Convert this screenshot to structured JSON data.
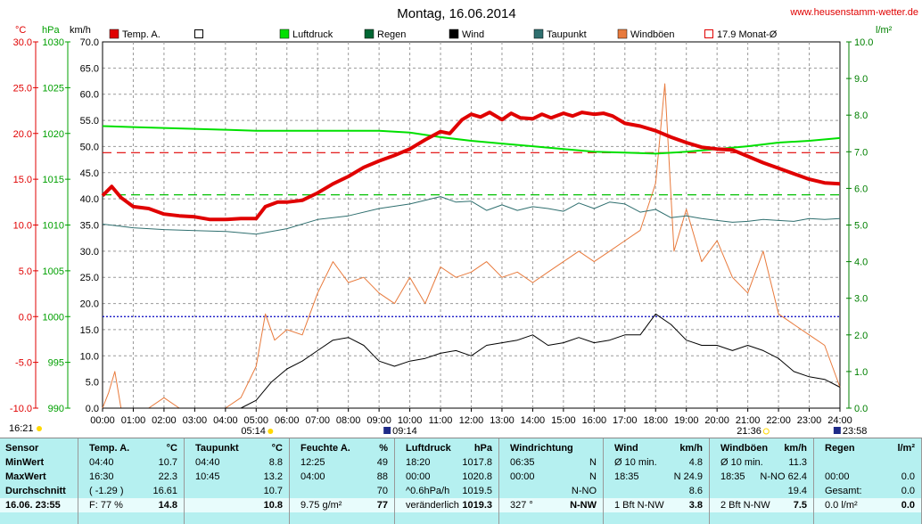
{
  "chart_data": {
    "type": "line",
    "title": "Montag, 16.06.2014",
    "website": "www.heusenstamm-wetter.de",
    "x_labels": [
      "00:00",
      "01:00",
      "02:00",
      "03:00",
      "04:00",
      "05:00",
      "06:00",
      "07:00",
      "08:00",
      "09:00",
      "10:00",
      "11:00",
      "12:00",
      "13:00",
      "14:00",
      "15:00",
      "16:00",
      "17:00",
      "18:00",
      "19:00",
      "20:00",
      "21:00",
      "22:00",
      "23:00",
      "24:00"
    ],
    "xlim": [
      0,
      24
    ],
    "axes": {
      "temp": {
        "unit": "°C",
        "min": -10,
        "max": 30,
        "ticks": [
          "30.0",
          "25.0",
          "20.0",
          "15.0",
          "10.0",
          "5.0",
          "0.0",
          "-5.0",
          "-10.0"
        ],
        "color": "#e00000"
      },
      "pressure": {
        "unit": "hPa",
        "min": 990,
        "max": 1030,
        "ticks": [
          "1030",
          "1025",
          "1020",
          "1015",
          "1010",
          "1005",
          "1000",
          "995",
          "990"
        ],
        "color": "#00a000"
      },
      "wind": {
        "unit": "km/h",
        "min": 0,
        "max": 70,
        "ticks": [
          "70.0",
          "65.0",
          "60.0",
          "55.0",
          "50.0",
          "45.0",
          "40.0",
          "35.0",
          "30.0",
          "25.0",
          "20.0",
          "15.0",
          "10.0",
          "5.0",
          "0.0"
        ],
        "color": "#000000"
      },
      "rain": {
        "unit": "l/m²",
        "min": 0,
        "max": 10,
        "ticks": [
          "10.0",
          "9.0",
          "8.0",
          "7.0",
          "6.0",
          "5.0",
          "4.0",
          "3.0",
          "2.0",
          "1.0",
          "0.0"
        ],
        "color": "#008000"
      }
    },
    "legend": [
      {
        "label": "Temp. A.",
        "color": "#e00000",
        "style": "filled"
      },
      {
        "label": "",
        "color": "#ffffff",
        "style": "outline"
      },
      {
        "label": "Luftdruck",
        "color": "#00e000",
        "style": "filled"
      },
      {
        "label": "Regen",
        "color": "#006633",
        "style": "filled"
      },
      {
        "label": "Wind",
        "color": "#000000",
        "style": "filled"
      },
      {
        "label": "Taupunkt",
        "color": "#2f6f6f",
        "style": "filled"
      },
      {
        "label": "Windböen",
        "color": "#e87a3c",
        "style": "filled"
      },
      {
        "label": "17.9 Monat-Ø",
        "color": "#e00000",
        "style": "outline"
      }
    ],
    "reference_lines": [
      {
        "name": "Monat-Ø Temperatur",
        "axis": "temp",
        "value": 17.9,
        "color": "#e00000"
      },
      {
        "name": "Luftdruck Referenz",
        "axis": "pressure",
        "value": 1013.3,
        "color": "#00c000"
      },
      {
        "name": "0 °C",
        "axis": "temp",
        "value": 0,
        "color": "#0000c0"
      }
    ],
    "series": [
      {
        "name": "Temp. A.",
        "axis": "temp",
        "color": "#e00000",
        "x": [
          0,
          0.3,
          0.6,
          1,
          1.5,
          2,
          2.5,
          3,
          3.5,
          4,
          4.5,
          5,
          5.3,
          5.7,
          6,
          6.5,
          7,
          7.5,
          8,
          8.5,
          9,
          9.5,
          10,
          10.5,
          11,
          11.3,
          11.7,
          12,
          12.3,
          12.6,
          13,
          13.3,
          13.6,
          14,
          14.3,
          14.6,
          15,
          15.3,
          15.6,
          16,
          16.3,
          16.6,
          17,
          17.5,
          18,
          18.5,
          19,
          19.5,
          20,
          20.5,
          21,
          21.5,
          22,
          22.5,
          23,
          23.5,
          24
        ],
        "y": [
          13.2,
          14.2,
          13.0,
          12.0,
          11.8,
          11.2,
          11.0,
          10.9,
          10.6,
          10.6,
          10.7,
          10.7,
          12.0,
          12.5,
          12.5,
          12.7,
          13.5,
          14.5,
          15.3,
          16.3,
          17.0,
          17.6,
          18.3,
          19.3,
          20.2,
          20.0,
          21.5,
          22.1,
          21.8,
          22.3,
          21.5,
          22.2,
          21.7,
          21.6,
          22.1,
          21.7,
          22.2,
          21.9,
          22.3,
          22.1,
          22.2,
          21.9,
          21.1,
          20.8,
          20.3,
          19.6,
          19.0,
          18.5,
          18.3,
          18.2,
          17.5,
          16.8,
          16.2,
          15.6,
          15.0,
          14.6,
          14.5
        ]
      },
      {
        "name": "Luftdruck",
        "axis": "pressure",
        "color": "#00e000",
        "x": [
          0,
          1,
          2,
          3,
          4,
          5,
          6,
          7,
          8,
          9,
          10,
          11,
          12,
          13,
          14,
          15,
          16,
          17,
          18,
          19,
          20,
          21,
          22,
          23,
          24
        ],
        "y": [
          1020.8,
          1020.7,
          1020.6,
          1020.5,
          1020.4,
          1020.3,
          1020.3,
          1020.3,
          1020.3,
          1020.3,
          1020.1,
          1019.6,
          1019.2,
          1018.9,
          1018.6,
          1018.3,
          1018.0,
          1017.9,
          1017.8,
          1018.0,
          1018.3,
          1018.6,
          1019.0,
          1019.2,
          1019.5
        ]
      },
      {
        "name": "Taupunkt",
        "axis": "temp",
        "color": "#2f6f6f",
        "x": [
          0,
          1,
          2,
          3,
          4,
          5,
          6,
          7,
          8,
          9,
          10,
          11,
          11.5,
          12,
          12.5,
          13,
          13.5,
          14,
          14.5,
          15,
          15.5,
          16,
          16.5,
          17,
          17.5,
          18,
          18.5,
          19,
          19.5,
          20,
          20.5,
          21,
          21.5,
          22,
          22.5,
          23,
          23.5,
          24
        ],
        "y": [
          10.1,
          9.7,
          9.5,
          9.4,
          9.3,
          9.0,
          9.6,
          10.6,
          11.0,
          11.8,
          12.3,
          13.1,
          12.5,
          12.6,
          11.6,
          12.2,
          11.6,
          12.0,
          11.8,
          11.5,
          12.4,
          11.8,
          12.5,
          12.3,
          11.4,
          11.7,
          10.8,
          11.0,
          10.7,
          10.5,
          10.3,
          10.4,
          10.6,
          10.5,
          10.4,
          10.7,
          10.6,
          10.7
        ]
      },
      {
        "name": "Wind",
        "axis": "wind",
        "color": "#000000",
        "x": [
          0,
          0.5,
          1,
          2,
          3,
          4,
          4.5,
          5,
          5.5,
          6,
          6.5,
          7,
          7.5,
          8,
          8.5,
          9,
          9.5,
          10,
          10.5,
          11,
          11.5,
          12,
          12.5,
          13,
          13.5,
          14,
          14.5,
          15,
          15.5,
          16,
          16.5,
          17,
          17.5,
          18,
          18.5,
          19,
          19.5,
          20,
          20.5,
          21,
          21.5,
          22,
          22.5,
          23,
          23.5,
          24
        ],
        "y": [
          0,
          0,
          0,
          0,
          0,
          0,
          0,
          1.5,
          5,
          7.5,
          9,
          11,
          13,
          13.5,
          12,
          9,
          8,
          9,
          9.5,
          10.5,
          11,
          10,
          12,
          12.5,
          13,
          14,
          12,
          12.5,
          13.5,
          12.5,
          13,
          14,
          14,
          18,
          16,
          13,
          12,
          12,
          11,
          12,
          11,
          9.5,
          7,
          6,
          5.5,
          4
        ]
      },
      {
        "name": "Windböen",
        "axis": "wind",
        "color": "#e87a3c",
        "x": [
          0,
          0.2,
          0.4,
          0.6,
          1,
          1.5,
          2,
          2.5,
          3,
          3.5,
          4,
          4.5,
          5,
          5.3,
          5.6,
          6,
          6.5,
          7,
          7.5,
          8,
          8.5,
          9,
          9.5,
          10,
          10.5,
          11,
          11.5,
          12,
          12.5,
          13,
          13.5,
          14,
          14.5,
          15,
          15.5,
          16,
          16.5,
          17,
          17.5,
          18,
          18.3,
          18.6,
          19,
          19.5,
          20,
          20.5,
          21,
          21.5,
          22,
          22.5,
          23,
          23.5,
          24
        ],
        "y": [
          0,
          3,
          7,
          0,
          0,
          0,
          2,
          0,
          0,
          0,
          0,
          2,
          8,
          18,
          13,
          15,
          14,
          22,
          28,
          24,
          25,
          22,
          20,
          25,
          20,
          27,
          25,
          26,
          28,
          25,
          26,
          24,
          26,
          28,
          30,
          28,
          30,
          32,
          34,
          43,
          62,
          30,
          38,
          28,
          32,
          25,
          22,
          30,
          18,
          16,
          14,
          12,
          4
        ]
      }
    ]
  },
  "stats": {
    "cols": [
      {
        "name": "sensor",
        "header": {
          "label": "Sensor",
          "unit": ""
        },
        "rows": [
          {
            "label": "MinWert"
          },
          {
            "label": "MaxWert"
          },
          {
            "label": "Durchschnitt"
          }
        ],
        "footer": {
          "label": "16.06. 23:55"
        }
      },
      {
        "name": "temp",
        "header": {
          "label": "Temp. A.",
          "unit": "°C"
        },
        "rows": [
          {
            "time": "04:40",
            "value": "10.7"
          },
          {
            "time": "16:30",
            "value": "22.3"
          },
          {
            "time": "( -1.29 )",
            "value": "16.61"
          }
        ],
        "footer": {
          "label": "F: 77 %",
          "value": "14.8"
        }
      },
      {
        "name": "taupunkt",
        "header": {
          "label": "Taupunkt",
          "unit": "°C"
        },
        "rows": [
          {
            "time": "04:40",
            "value": "8.8"
          },
          {
            "time": "10:45",
            "value": "13.2"
          },
          {
            "time": "",
            "value": "10.7"
          }
        ],
        "footer": {
          "label": "",
          "value": "10.8"
        }
      },
      {
        "name": "feuchte",
        "header": {
          "label": "Feuchte A.",
          "unit": "%"
        },
        "rows": [
          {
            "time": "12:25",
            "value": "49"
          },
          {
            "time": "04:00",
            "value": "88"
          },
          {
            "time": "",
            "value": "70"
          }
        ],
        "footer": {
          "label": "9.75 g/m²",
          "value": "77"
        }
      },
      {
        "name": "luftdruck",
        "header": {
          "label": "Luftdruck",
          "unit": "hPa"
        },
        "rows": [
          {
            "time": "18:20",
            "value": "1017.8"
          },
          {
            "time": "00:00",
            "value": "1020.8"
          },
          {
            "time": "^0.6hPa/h",
            "value": "1019.5"
          }
        ],
        "footer": {
          "label": "veränderlich",
          "value": "1019.3"
        }
      },
      {
        "name": "windrichtung",
        "header": {
          "label": "Windrichtung",
          "unit": ""
        },
        "rows": [
          {
            "time": "06:35",
            "value": "N"
          },
          {
            "time": "00:00",
            "value": "N"
          },
          {
            "time": "",
            "value": "N-NO"
          }
        ],
        "footer": {
          "label": "327 °",
          "value": "N-NW"
        }
      },
      {
        "name": "wind",
        "header": {
          "label": "Wind",
          "unit": "km/h"
        },
        "rows": [
          {
            "time": "Ø 10 min.",
            "value": "4.8"
          },
          {
            "time": "18:35",
            "value": "N 24.9"
          },
          {
            "time": "",
            "value": "8.6"
          }
        ],
        "footer": {
          "label": "1 Bft N-NW",
          "value": "3.8"
        }
      },
      {
        "name": "windboeen",
        "header": {
          "label": "Windböen",
          "unit": "km/h"
        },
        "rows": [
          {
            "time": "Ø 10 min.",
            "value": "11.3"
          },
          {
            "time": "18:35",
            "value": "N-NO 62.4"
          },
          {
            "time": "",
            "value": "19.4"
          }
        ],
        "footer": {
          "label": "2 Bft N-NW",
          "value": "7.5"
        }
      },
      {
        "name": "regen",
        "header": {
          "label": "Regen",
          "unit": "l/m²"
        },
        "rows": [
          {
            "time": "",
            "value": ""
          },
          {
            "time": "00:00",
            "value": "0.0"
          },
          {
            "time": "Gesamt:",
            "value": "0.0"
          }
        ],
        "footer": {
          "label": "0.0 l/m²",
          "value": "0.0"
        }
      }
    ]
  },
  "time_markers": {
    "now": "16:21",
    "sunrise": "05:14",
    "moon1": "09:14",
    "sunset": "21:36",
    "moon2": "23:58"
  }
}
